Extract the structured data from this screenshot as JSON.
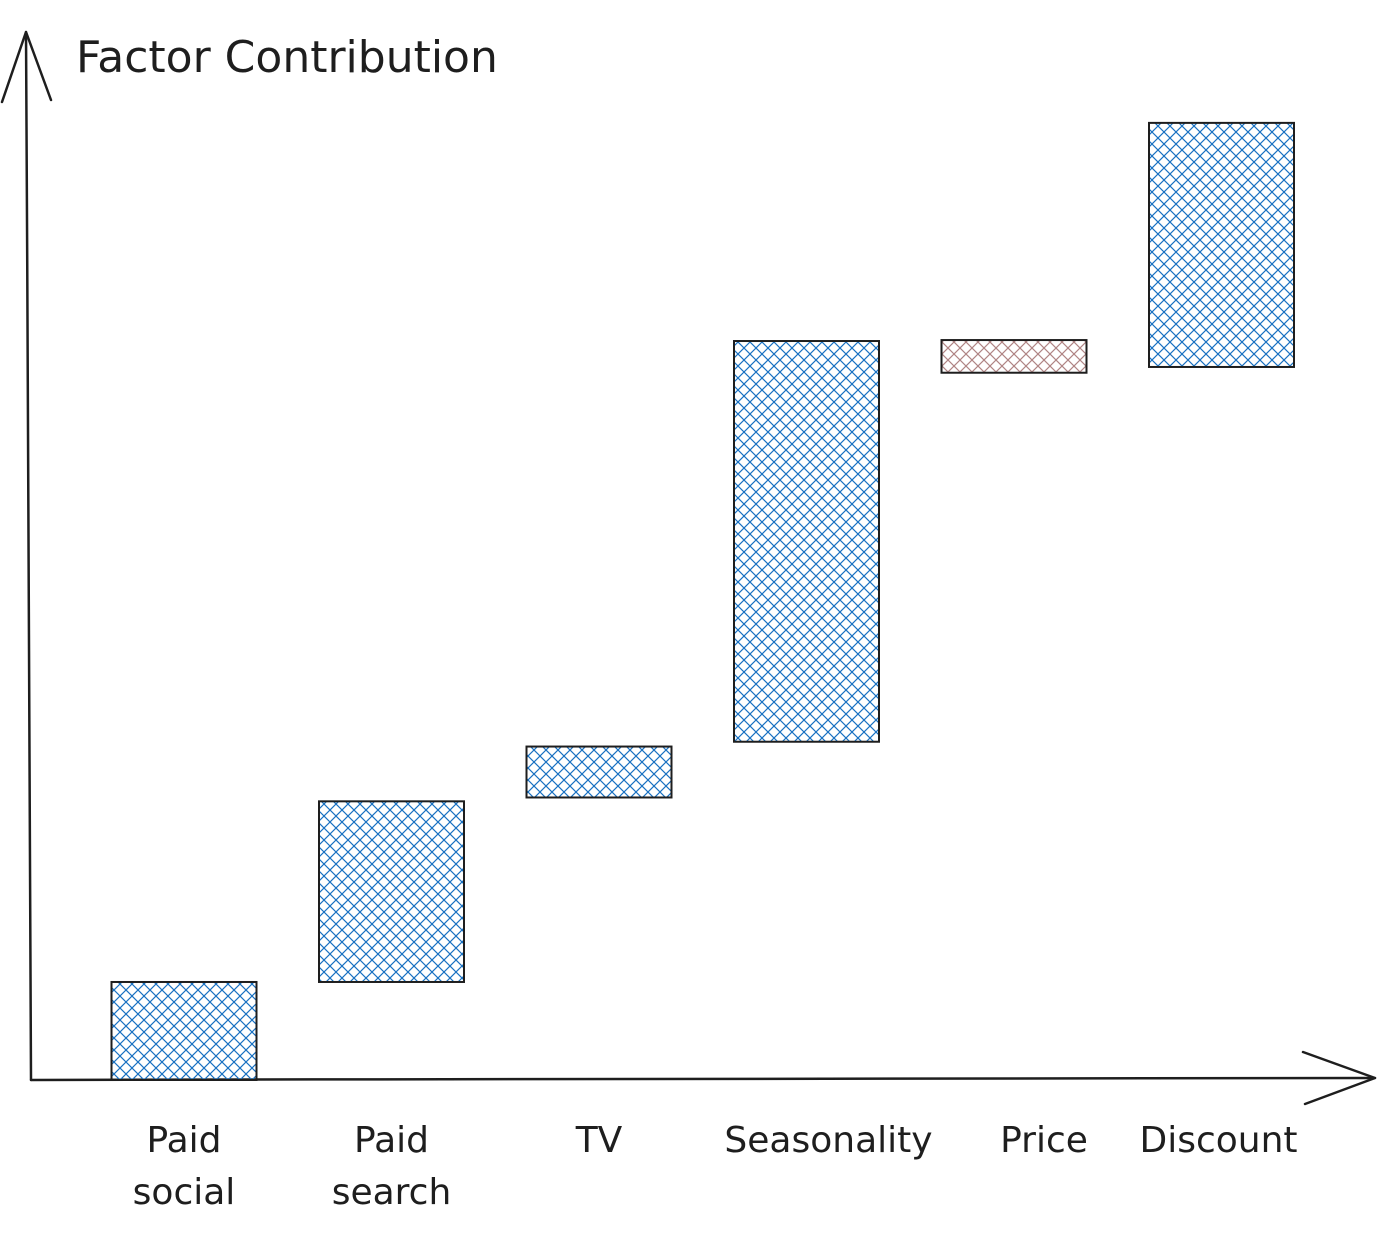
{
  "chart_data": {
    "type": "bar",
    "subtype": "waterfall",
    "title": "Factor Contribution",
    "xlabel": "",
    "ylabel": "Factor Contribution",
    "categories": [
      [
        "Paid",
        "social"
      ],
      [
        "Paid",
        "search"
      ],
      [
        "TV"
      ],
      [
        "Seasonality"
      ],
      [
        "Price"
      ],
      [
        "Discount"
      ]
    ],
    "bars": [
      {
        "start": 0,
        "end": 10.2,
        "value": 10.2,
        "direction": "increase"
      },
      {
        "start": 10.2,
        "end": 29.0,
        "value": 18.8,
        "direction": "increase"
      },
      {
        "start": 29.4,
        "end": 34.7,
        "value": 5.3,
        "direction": "increase"
      },
      {
        "start": 35.2,
        "end": 76.9,
        "value": 41.7,
        "direction": "increase"
      },
      {
        "start": 77.0,
        "end": 73.6,
        "value": -3.4,
        "direction": "decrease"
      },
      {
        "start": 74.2,
        "end": 99.6,
        "value": 25.4,
        "direction": "increase"
      }
    ],
    "ylim": [
      0,
      108
    ],
    "grid": false,
    "legend": "none",
    "colors": {
      "increase": "#1971c2",
      "decrease": "#b08585",
      "outline": "#1e1e1e",
      "axis": "#1e1e1e"
    },
    "fill_style": "cross-hatch"
  }
}
